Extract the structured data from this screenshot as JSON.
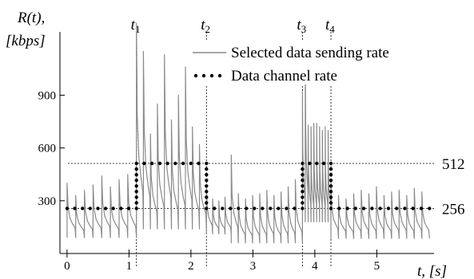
{
  "chart_data": {
    "type": "line",
    "y_label_line1": "R(t),",
    "y_label_line2": "[kbps]",
    "x_label": "t, [s]",
    "xlim": [
      -0.05,
      5.95
    ],
    "ylim": [
      0,
      1260
    ],
    "x_ticks": [
      0,
      1,
      2,
      3,
      4,
      5
    ],
    "y_ticks": [
      300,
      600,
      900
    ],
    "y_tick_labels": [
      "300",
      "600",
      "900"
    ],
    "x_tick_labels": [
      "0",
      "1",
      "2",
      "3",
      "4",
      "5"
    ],
    "ref_lines": [
      {
        "label": "512",
        "value": 512
      },
      {
        "label": "256",
        "value": 256
      }
    ],
    "markers": [
      {
        "label": "t1",
        "value": 1.12
      },
      {
        "label": "t2",
        "value": 2.25
      },
      {
        "label": "t3",
        "value": 3.8
      },
      {
        "label": "t4",
        "value": 4.26
      }
    ],
    "series": [
      {
        "name": "Selected data sending rate",
        "style": "solid",
        "color": "#8a8a8a",
        "sawtooth_groups": [
          {
            "start": 0.0,
            "end": 1.12,
            "peaks": [
              400,
              330,
              360,
              390,
              440,
              380,
              420,
              450
            ],
            "base": 90
          },
          {
            "start": 1.12,
            "end": 2.25,
            "peaks": [
              1310,
              1150,
              680,
              850,
              1130,
              760,
              900,
              1060,
              720,
              620
            ],
            "base": 140
          },
          {
            "start": 2.25,
            "end": 2.65,
            "peaks": [
              390,
              310,
              300,
              320
            ],
            "base": 110
          },
          {
            "start": 2.65,
            "end": 3.8,
            "peaks": [
              560,
              340,
              310,
              330,
              340,
              360,
              330,
              350,
              380,
              420
            ],
            "base": 60
          },
          {
            "start": 3.8,
            "end": 4.26,
            "peaks": [
              920,
              1160,
              730,
              720,
              740,
              740,
              720,
              700,
              720,
              700
            ],
            "base": 180
          },
          {
            "start": 4.26,
            "end": 5.85,
            "peaks": [
              400,
              330,
              310,
              340,
              360,
              340,
              380,
              330,
              350,
              360,
              330,
              370,
              350
            ],
            "base": 85
          }
        ]
      },
      {
        "name": "Data channel rate",
        "style": "dotted",
        "color": "#000000",
        "step": [
          {
            "x": 0.0,
            "y": 256
          },
          {
            "x": 1.12,
            "y": 512
          },
          {
            "x": 2.25,
            "y": 256
          },
          {
            "x": 3.8,
            "y": 512
          },
          {
            "x": 4.26,
            "y": 256
          },
          {
            "x": 5.85,
            "y": 256
          }
        ]
      }
    ],
    "legend": {
      "placement": "top-right",
      "entries": [
        "Selected data sending rate",
        "Data channel rate"
      ]
    }
  }
}
